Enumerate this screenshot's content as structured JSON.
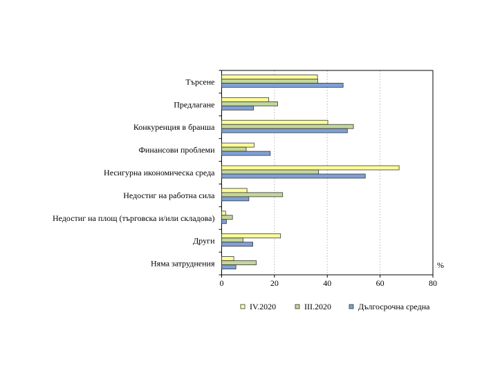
{
  "chart_data": {
    "type": "bar",
    "orientation": "horizontal",
    "categories": [
      "Търсене",
      "Предлагане",
      "Конкуренция в бранша",
      "Финансови проблеми",
      "Несигурна икономическа среда",
      "Недостиг на работна сила",
      "Недостиг на площ (търговска и/или складова)",
      "Други",
      "Няма затруднения"
    ],
    "series": [
      {
        "name": "IV.2020",
        "color": "#ffff99",
        "values": [
          36.3,
          17.8,
          40.2,
          12.3,
          67.2,
          9.6,
          1.5,
          22.3,
          4.6
        ]
      },
      {
        "name": "III.2020",
        "color": "#c3d69b",
        "values": [
          36.4,
          21.2,
          49.9,
          9.3,
          36.7,
          23.1,
          4.1,
          8.1,
          13.1
        ]
      },
      {
        "name": "Дългосрочна средна",
        "color": "#7f9fd5",
        "values": [
          46.0,
          12.1,
          47.6,
          18.4,
          54.4,
          10.3,
          1.8,
          11.8,
          5.4
        ]
      }
    ],
    "xlim": [
      0,
      80
    ],
    "xticks": [
      "0",
      "20",
      "40",
      "60",
      "80"
    ],
    "xlabel": "%",
    "grid": true,
    "legend": "bottom"
  }
}
